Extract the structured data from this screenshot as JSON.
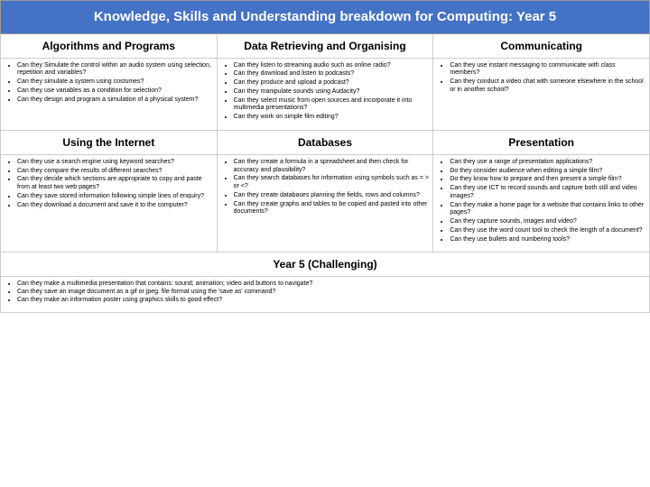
{
  "title": "Knowledge, Skills and Understanding breakdown for Computing: Year 5",
  "colors": {
    "title_bg": "#4472c4",
    "title_fg": "#ffffff",
    "border": "#cccccc",
    "page_bg": "#ffffff"
  },
  "row1_headers": [
    "Algorithms and Programs",
    "Data Retrieving and Organising",
    "Communicating"
  ],
  "row1": {
    "c1": [
      "Can they Simulate the control within an audio system using selection, repetition and variables?",
      "Can they simulate a system using costumes?",
      "Can they use variables as a condition for selection?",
      "Can they design and program a simulation of a physical system?"
    ],
    "c2": [
      "Can they listen to streaming audio such as online radio?",
      "Can they download and listen to podcasts?",
      "Can they produce and upload a podcast?",
      "Can they manipulate sounds using Audacity?",
      "Can they select music from open sources and incorporate it into multimedia presentations?",
      "Can they work on simple film editing?"
    ],
    "c3": [
      "Can they use instant messaging to communicate with class members?",
      "Can they conduct a video chat with someone elsewhere in the school or in another school?"
    ]
  },
  "row2_headers": [
    "Using the Internet",
    "Databases",
    "Presentation"
  ],
  "row2": {
    "c1": [
      "Can they use a search engine using keyword searches?",
      "Can they compare the results of different searches?",
      "Can they decide which sections are appropriate to copy and paste from at least two web pages?",
      "Can they save stored information following simple lines of enquiry?",
      "Can they download a document and save it to the computer?"
    ],
    "c2": [
      "Can they create a formula in a spreadsheet and then check for accuracy and plausibility?",
      "Can they search databases for information using symbols such as = > or <?",
      "Can they create databases planning the fields, rows and columns?",
      "Can they create graphs and tables to be copied and pasted into other documents?"
    ],
    "c3": [
      "Can they use a range of presentation applications?",
      "Do they consider audience when editing a simple film?",
      "Do they know how to prepare and then present a simple film?",
      "Can they use ICT to record sounds and capture both still and video images?",
      "Can they make a home page for a website that contains links to other pages?",
      "Can they capture sounds, images and video?",
      "Can they use the word count tool to check the length of a document?",
      "Can they use bullets and numbering tools?"
    ]
  },
  "bottom_header": "Year 5 (Challenging)",
  "bottom": [
    "Can they make a multimedia presentation that contains: sound; animation; video and buttons to navigate?",
    "Can they save an image document as a gif or jpeg. file format using the 'save as' command?",
    "Can they make an information poster using graphics skills to good effect?"
  ]
}
